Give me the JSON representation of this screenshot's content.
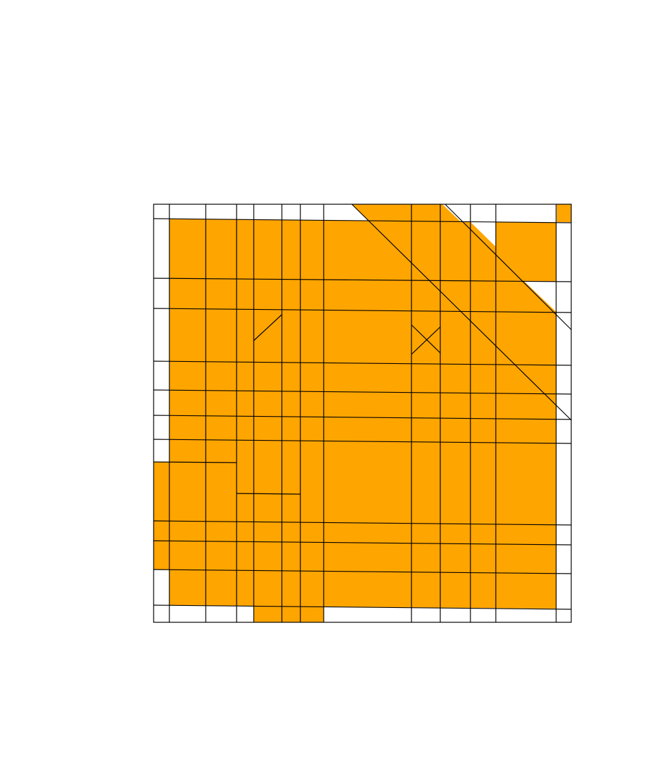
{
  "diagram": {
    "fill_color": "#FFA500",
    "line_color": "#000000",
    "background_color": "#FFFFFF"
  }
}
